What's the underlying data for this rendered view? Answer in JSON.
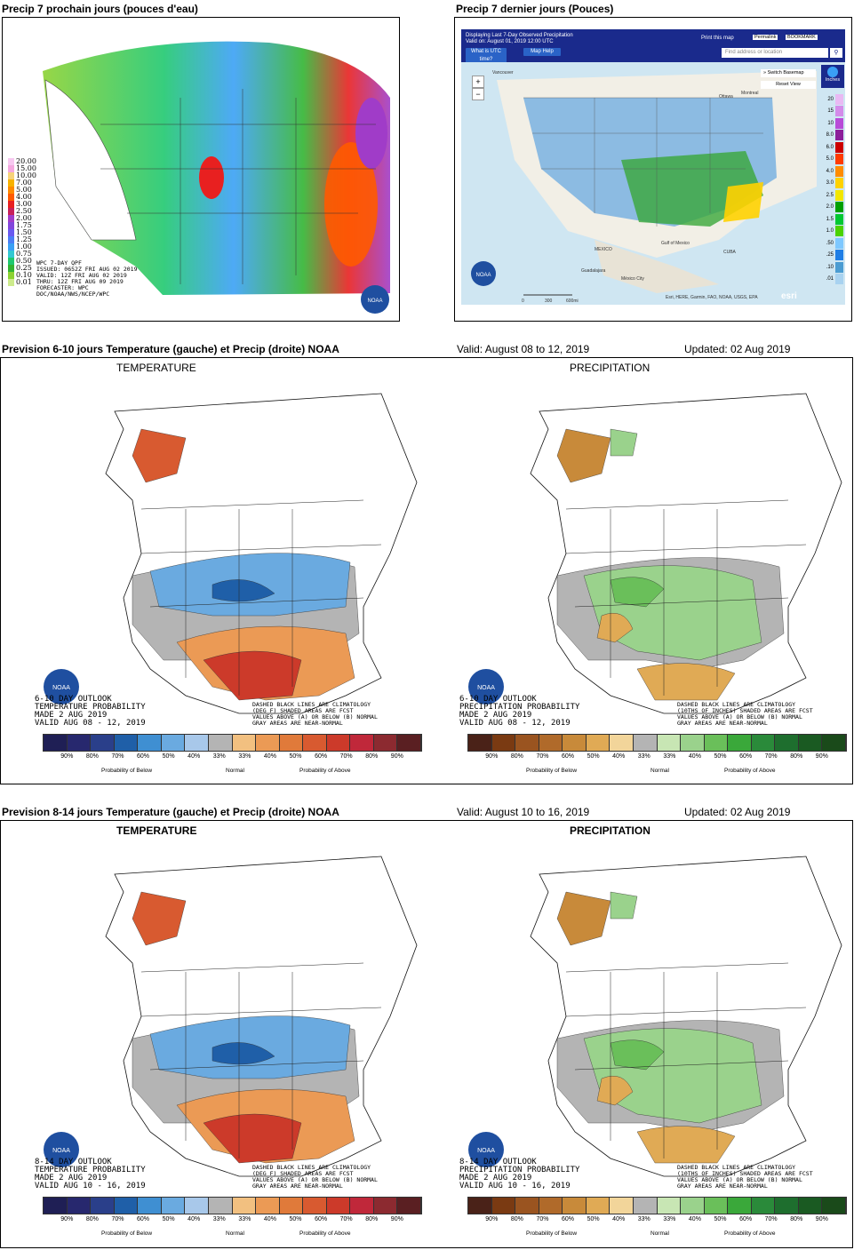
{
  "panel1": {
    "title": "Precip 7 prochain jours (pouces d'eau)",
    "legend": [
      "20.00",
      "15.00",
      "10.00",
      "7.00",
      "5.00",
      "4.00",
      "3.00",
      "2.50",
      "2.00",
      "1.75",
      "1.50",
      "1.25",
      "1.00",
      "0.75",
      "0.50",
      "0.25",
      "0.10",
      "0.01"
    ],
    "legend_colors": [
      "#f7c8f0",
      "#f5a8e0",
      "#f7d37a",
      "#f7b200",
      "#ff8a00",
      "#ff5a00",
      "#e82020",
      "#c8205a",
      "#a03cc8",
      "#8246dc",
      "#6a5af0",
      "#4b7ef5",
      "#3aa0f5",
      "#32c8d2",
      "#20c870",
      "#32b432",
      "#8cd232",
      "#cdeb8c"
    ],
    "info": [
      "WPC 7-DAY QPF",
      "ISSUED: 0652Z FRI AUG 02 2019",
      "VALID: 12Z FRI AUG 02 2019",
      "THRU: 12Z FRI AUG 09 2019",
      "FORECASTER: WPC",
      "DOC/NOAA/NWS/NCEP/WPC"
    ]
  },
  "panel2": {
    "title": "Precip 7 dernier jours (Pouces)",
    "header_line1": "Displaying Last 7-Day Observed Precipitation",
    "header_line2": "Valid on: August 01, 2019 12:00 UTC",
    "btn_utc": "What is UTC time?",
    "btn_help": "Map Help",
    "print": "Print this map",
    "permalink": "Permalink",
    "bookmark": "BOOKMARK",
    "search_placeholder": "Find address or location",
    "switch_basemap": "» Switch Basemap",
    "reset_view": "Reset View",
    "zoom_in": "+",
    "zoom_out": "−",
    "inches": "Inches",
    "scale": [
      "0",
      "300",
      "600mi"
    ],
    "attribution": "Esri, HERE, Garmin, FAO, NOAA, USGS, EPA",
    "esri": "esri",
    "places": [
      "Vancouver",
      "Ottawa",
      "Montreal",
      "MEXICO",
      "Gulf of Mexico",
      "CUBA",
      "Guadalajara",
      "México City"
    ],
    "legend": [
      "20",
      "15",
      "10",
      "8.0",
      "6.0",
      "5.0",
      "4.0",
      "3.0",
      "2.5",
      "2.0",
      "1.5",
      "1.0",
      ".50",
      ".25",
      ".10",
      ".01"
    ],
    "legend_colors": [
      "#e9b9f3",
      "#d48bea",
      "#b84bd8",
      "#8b1e9a",
      "#cc0000",
      "#ff3b00",
      "#ff8c00",
      "#ffd200",
      "#f2e600",
      "#00a000",
      "#00c832",
      "#4bd200",
      "#7ec8ff",
      "#1e7ee6",
      "#4b9cd2",
      "#a8d2f0"
    ]
  },
  "section1": {
    "title": "Prevision 6-10 jours Temperature (gauche) et Precip (droite) NOAA",
    "valid": "Valid: August 08 to 12, 2019",
    "updated": "Updated: 02 Aug 2019",
    "temp_label": "TEMPERATURE",
    "precip_label": "PRECIPITATION",
    "temp_text": [
      "6-10 DAY OUTLOOK",
      "TEMPERATURE PROBABILITY",
      "MADE  2 AUG 2019",
      "VALID  AUG 08 - 12, 2019"
    ],
    "precip_text": [
      "6-10 DAY OUTLOOK",
      "PRECIPITATION PROBABILITY",
      "MADE  2 AUG 2019",
      "VALID  AUG 08 - 12, 2019"
    ],
    "temp_note": [
      "DASHED BLACK LINES ARE CLIMATOLOGY",
      "(DEG F) SHADED AREAS ARE FCST",
      "VALUES ABOVE (A) OR BELOW (B) NORMAL",
      "GRAY AREAS ARE NEAR-NORMAL"
    ],
    "precip_note": [
      "DASHED BLACK LINES ARE CLIMATOLOGY",
      "(10THS OF INCHES) SHADED AREAS ARE FCST",
      "VALUES ABOVE (A) OR BELOW (B) NORMAL",
      "GRAY AREAS ARE NEAR-NORMAL"
    ]
  },
  "section2": {
    "title": "Prevision 8-14 jours Temperature (gauche) et Precip (droite) NOAA",
    "valid": "Valid: August 10 to 16, 2019",
    "updated": "Updated: 02 Aug 2019",
    "temp_label": "TEMPERATURE",
    "precip_label": "PRECIPITATION",
    "temp_text": [
      "8-14 DAY OUTLOOK",
      "TEMPERATURE PROBABILITY",
      "MADE  2 AUG 2019",
      "VALID  AUG 10 - 16, 2019"
    ],
    "precip_text": [
      "8-14 DAY OUTLOOK",
      "PRECIPITATION PROBABILITY",
      "MADE  2 AUG 2019",
      "VALID  AUG 10 - 16, 2019"
    ],
    "temp_note": [
      "DASHED BLACK LINES ARE CLIMATOLOGY",
      "(DEG F) SHADED AREAS ARE FCST",
      "VALUES ABOVE (A) OR BELOW (B) NORMAL",
      "GRAY AREAS ARE NEAR-NORMAL"
    ],
    "precip_note": [
      "DASHED BLACK LINES ARE CLIMATOLOGY",
      "(10THS OF INCHES) SHADED AREAS ARE FCST",
      "VALUES ABOVE (A) OR BELOW (B) NORMAL",
      "GRAY AREAS ARE NEAR-NORMAL"
    ]
  },
  "temp_scale": {
    "colors": [
      "#1f1f55",
      "#27286e",
      "#2a3f8a",
      "#1f5fa8",
      "#3f8fd2",
      "#6aaae0",
      "#a8c8ea",
      "#b4b4b4",
      "#f2c080",
      "#eb9a55",
      "#e07a3a",
      "#d85a30",
      "#cc3a2a",
      "#c0283a",
      "#8c2a30",
      "#5a1f22"
    ],
    "ticks": [
      "90%",
      "80%",
      "70%",
      "60%",
      "50%",
      "40%",
      "33%",
      "33%",
      "40%",
      "50%",
      "60%",
      "70%",
      "80%",
      "90%"
    ],
    "below": "Probability of Below",
    "normal": "Normal",
    "above": "Probability of Above"
  },
  "precip_scale": {
    "colors": [
      "#4a2218",
      "#7a3a12",
      "#9a5420",
      "#b06a2a",
      "#c88a3a",
      "#e0aa55",
      "#f2d59a",
      "#b4b4b4",
      "#c8e6b4",
      "#9ad28c",
      "#6abf5a",
      "#3aa83a",
      "#2a8a3a",
      "#1e6e2e",
      "#1a5a22",
      "#1a4a1a"
    ],
    "ticks": [
      "90%",
      "80%",
      "70%",
      "60%",
      "50%",
      "40%",
      "33%",
      "33%",
      "40%",
      "50%",
      "60%",
      "70%",
      "80%",
      "90%"
    ],
    "below": "Probability of Below",
    "normal": "Normal",
    "above": "Probability of Above"
  },
  "noaa": "NOAA"
}
